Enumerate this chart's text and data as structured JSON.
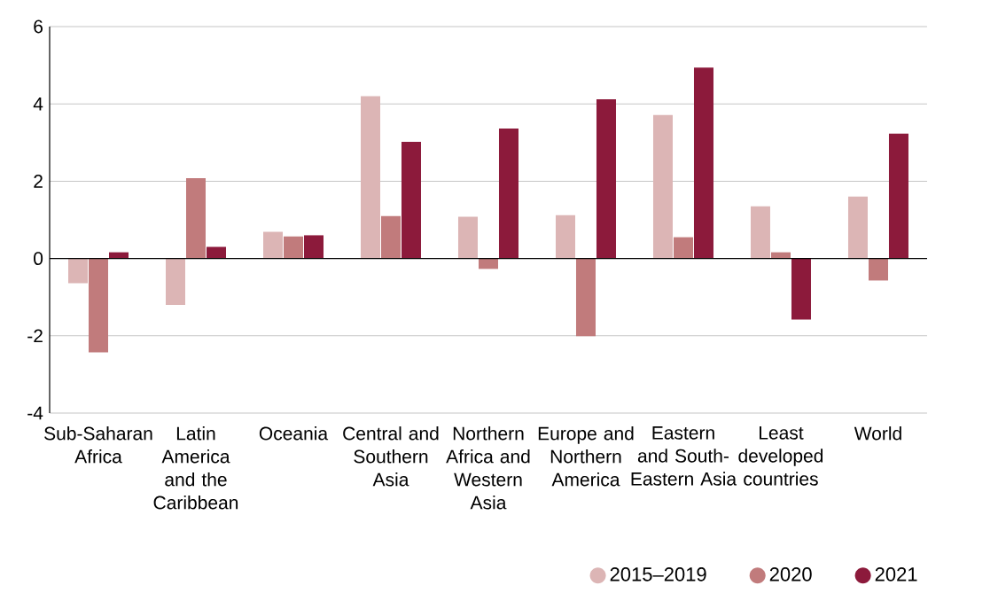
{
  "chart_data": {
    "type": "bar",
    "categories": [
      "Sub-Saharan Africa",
      "Latin America and the Caribbean",
      "Oceania",
      "Central and Southern Asia",
      "Northern Africa and Western Asia",
      "Europe and Northern America",
      "Eastern and South-Eastern Asia",
      "Least developed countries",
      "World"
    ],
    "series": [
      {
        "name": "2015–2019",
        "color": "#dcb5b5",
        "values": [
          -0.64,
          -1.2,
          0.69,
          4.2,
          1.08,
          1.12,
          3.71,
          1.35,
          1.6
        ]
      },
      {
        "name": "2020",
        "color": "#c17b7c",
        "values": [
          -2.43,
          2.08,
          0.57,
          1.1,
          -0.27,
          -2.01,
          0.55,
          0.16,
          -0.57
        ]
      },
      {
        "name": "2021",
        "color": "#8c1a3b",
        "values": [
          0.16,
          0.3,
          0.6,
          3.02,
          3.36,
          4.12,
          4.94,
          -1.58,
          3.23
        ]
      }
    ],
    "ylim": [
      -4,
      6
    ],
    "yticks": [
      -4,
      -2,
      0,
      2,
      4,
      6
    ],
    "grid": "y",
    "legend": "bottom right"
  }
}
